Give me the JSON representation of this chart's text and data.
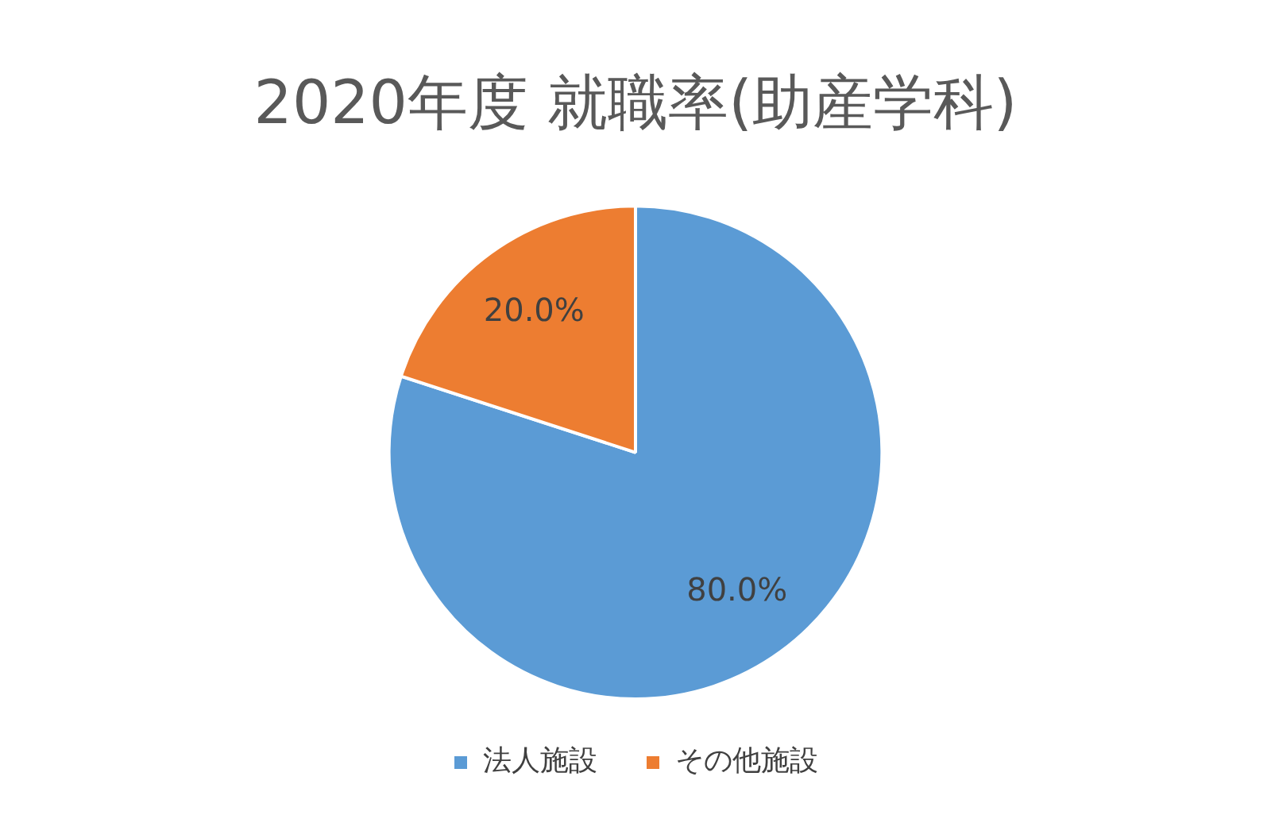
{
  "chart_data": {
    "type": "pie",
    "title": "2020年度 就職率(助産学科)",
    "categories": [
      "法人施設",
      "その他施設"
    ],
    "values": [
      80,
      20
    ],
    "colors": [
      "#5b9bd5",
      "#ed7d31"
    ],
    "value_labels": [
      "80.0%",
      "20.0%"
    ],
    "legend": "bottom"
  }
}
